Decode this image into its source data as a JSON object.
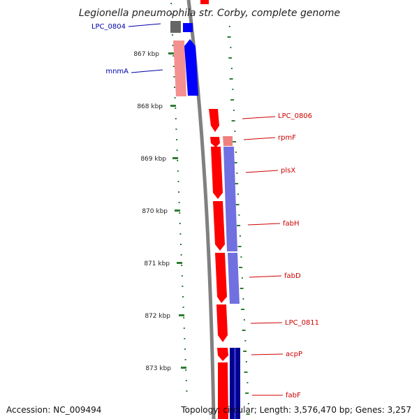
{
  "title": "Legionella pneumophila str. Corby, complete genome",
  "footer": {
    "accession": "Accession: NC_009494",
    "stats": "Topology: circular; Length: 3,576,470 bp; Genes: 3,257"
  },
  "colors": {
    "forward_strong": "#ff0000",
    "forward_light": "#f08080",
    "forward_rna": "#f59090",
    "reverse_strong": "#0000ff",
    "reverse_light": "#7070e0",
    "reverse_dark": "#000090",
    "pseudo_gray": "#666666",
    "backbone": "#808080",
    "tick_green": "#2e7d32",
    "label_blue": "#0000aa",
    "label_red": "#cc0000"
  },
  "scale": {
    "ticks": [
      {
        "label": "867 kbp"
      },
      {
        "label": "868 kbp"
      },
      {
        "label": "869 kbp"
      },
      {
        "label": "870 kbp"
      },
      {
        "label": "871 kbp"
      },
      {
        "label": "872 kbp"
      },
      {
        "label": "873 kbp"
      }
    ]
  },
  "genes": [
    {
      "name": "LPC_0804",
      "strand": "reverse",
      "color": "blue"
    },
    {
      "name": "mnmA",
      "strand": "reverse",
      "color": "blue"
    },
    {
      "name": "LPC_0806",
      "strand": "forward",
      "color": "red"
    },
    {
      "name": "rpmF",
      "strand": "forward",
      "color": "red"
    },
    {
      "name": "plsX",
      "strand": "forward",
      "color": "red"
    },
    {
      "name": "fabH",
      "strand": "forward",
      "color": "red"
    },
    {
      "name": "fabD",
      "strand": "forward",
      "color": "red"
    },
    {
      "name": "LPC_0811",
      "strand": "forward",
      "color": "red"
    },
    {
      "name": "acpP",
      "strand": "forward",
      "color": "red"
    },
    {
      "name": "fabF",
      "strand": "forward",
      "color": "red"
    }
  ]
}
